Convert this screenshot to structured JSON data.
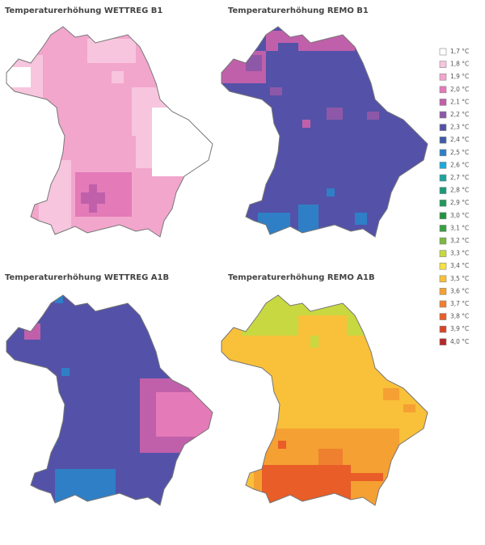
{
  "panels": [
    {
      "title": "Temperaturerhöhung WETTREG B1"
    },
    {
      "title": "Temperaturerhöhung REMO B1"
    },
    {
      "title": "Temperaturerhöhung WETTREG A1B"
    },
    {
      "title": "Temperaturerhöhung REMO A1B"
    }
  ],
  "legend": [
    {
      "label": "1,7 °C",
      "color": "#ffffff"
    },
    {
      "label": "1,8 °C",
      "color": "#f7c5de"
    },
    {
      "label": "1,9 °C",
      "color": "#f2a6cc"
    },
    {
      "label": "2,0 °C",
      "color": "#e47ab8"
    },
    {
      "label": "2,1 °C",
      "color": "#c060aa"
    },
    {
      "label": "2,2 °C",
      "color": "#8e58a8"
    },
    {
      "label": "2,3 °C",
      "color": "#5352a8"
    },
    {
      "label": "2,4 °C",
      "color": "#3f5aa8"
    },
    {
      "label": "2,5 °C",
      "color": "#2f7fc6"
    },
    {
      "label": "2,6 °C",
      "color": "#20a8d8"
    },
    {
      "label": "2,7 °C",
      "color": "#1ba3a0"
    },
    {
      "label": "2,8 °C",
      "color": "#1a9a7a"
    },
    {
      "label": "2,9 °C",
      "color": "#1f9a5a"
    },
    {
      "label": "3,0 °C",
      "color": "#22943e"
    },
    {
      "label": "3,1 °C",
      "color": "#38a040"
    },
    {
      "label": "3,2 °C",
      "color": "#7ab840"
    },
    {
      "label": "3,3 °C",
      "color": "#c8d840"
    },
    {
      "label": "3,4 °C",
      "color": "#f8e040"
    },
    {
      "label": "3,5 °C",
      "color": "#f9c03a"
    },
    {
      "label": "3,6 °C",
      "color": "#f5a032"
    },
    {
      "label": "3,7 °C",
      "color": "#ee8030"
    },
    {
      "label": "3,8 °C",
      "color": "#e85d28"
    },
    {
      "label": "3,9 °C",
      "color": "#d84428"
    },
    {
      "label": "4,0 °C",
      "color": "#b82828"
    }
  ]
}
